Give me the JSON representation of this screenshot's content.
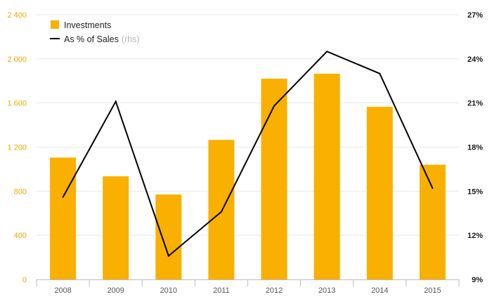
{
  "colors": {
    "bar": "#f9b000",
    "line": "#000000",
    "left_axis_text": "#f0a800",
    "right_axis_text": "#1a1a1a",
    "x_axis_text": "#555555",
    "grid": "#e8e8e8",
    "axis": "#bbbbbb",
    "legend_suffix": "#b5b5b5",
    "legend_text": "#222222"
  },
  "legend": {
    "bar_label": "Investments",
    "line_label": "As % of Sales",
    "line_suffix": "(rhs)"
  },
  "chart_data": {
    "type": "bar",
    "categories": [
      "2008",
      "2009",
      "2010",
      "2011",
      "2012",
      "2013",
      "2014",
      "2015"
    ],
    "series": [
      {
        "name": "Investments",
        "type": "bar",
        "axis": "left",
        "values": [
          1105,
          935,
          770,
          1265,
          1820,
          1865,
          1565,
          1040
        ]
      },
      {
        "name": "As % of Sales",
        "type": "line",
        "axis": "right",
        "values": [
          14.6,
          21.1,
          10.6,
          13.6,
          20.8,
          24.5,
          23.0,
          15.2
        ]
      }
    ],
    "y_left": {
      "range": [
        0,
        2400
      ],
      "ticks": [
        0,
        400,
        800,
        1200,
        1600,
        2000,
        2400
      ],
      "tick_labels": [
        "0",
        "400",
        "800",
        "1 200",
        "1 600",
        "2 000",
        "2 400"
      ]
    },
    "y_right": {
      "range": [
        9,
        27
      ],
      "ticks": [
        9,
        12,
        15,
        18,
        21,
        24,
        27
      ],
      "tick_labels": [
        "9%",
        "12%",
        "15%",
        "18%",
        "21%",
        "24%",
        "27%"
      ]
    },
    "grid": true,
    "legend_position": "top-left"
  }
}
